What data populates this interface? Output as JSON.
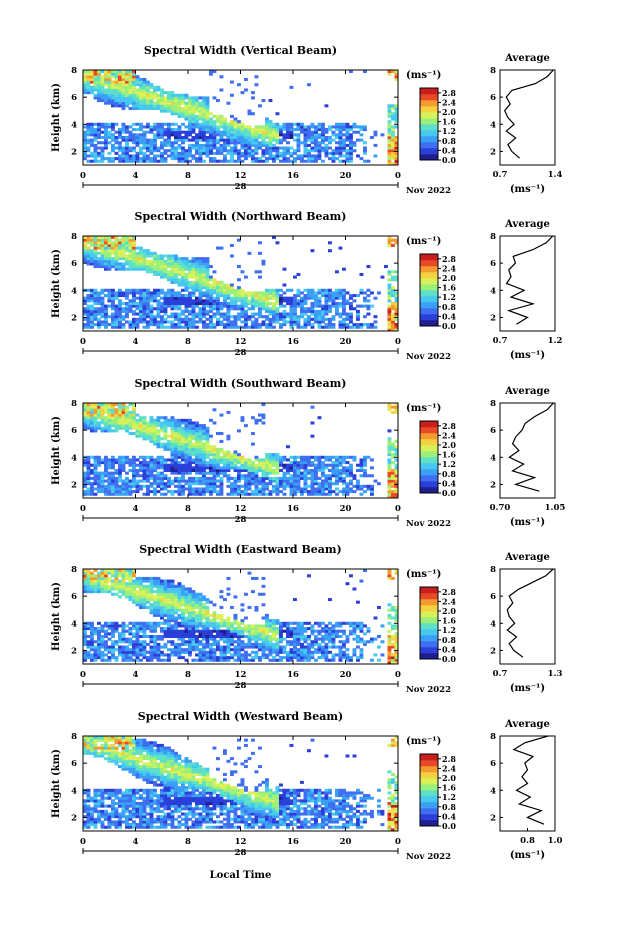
{
  "page": {
    "xlabel": "Local Time",
    "date_label": "Nov 2022",
    "day_label": "28",
    "ylabel": "Height (km)",
    "unit_label": "(ms⁻¹)",
    "average_title": "Average"
  },
  "colors": {
    "scale": [
      "#1f1f8f",
      "#2b3fd9",
      "#3f6ff0",
      "#3aa0f5",
      "#46c8f0",
      "#5ee0c8",
      "#9cf07a",
      "#d8f05a",
      "#f5d040",
      "#f59a30",
      "#e84a28",
      "#c81e1e"
    ]
  },
  "chart_data": [
    {
      "type": "heatmap",
      "title": "Spectral Width (Vertical Beam)",
      "ylabel": "Height (km)",
      "x_ticks": [
        "0",
        "4",
        "8",
        "12",
        "16",
        "20",
        "0"
      ],
      "xlim": [
        0,
        24
      ],
      "y_ticks": [
        "2",
        "4",
        "6",
        "8"
      ],
      "ylim": [
        1,
        8
      ],
      "colorbar_ticks": [
        "0.0",
        "0.4",
        "0.8",
        "1.2",
        "1.6",
        "2.0",
        "2.4",
        "2.8"
      ],
      "clim": [
        0,
        3.0
      ],
      "average": {
        "xlim": [
          0.7,
          1.4
        ],
        "x_ticks": [
          "0.7",
          "1.4"
        ],
        "height": [
          1.5,
          2,
          2.5,
          3,
          3.5,
          4,
          4.5,
          5,
          5.5,
          6,
          6.5,
          7,
          7.5,
          8
        ],
        "value": [
          0.95,
          0.85,
          0.8,
          0.9,
          0.78,
          0.88,
          0.8,
          0.76,
          0.83,
          0.78,
          0.85,
          1.15,
          1.3,
          1.38
        ]
      }
    },
    {
      "type": "heatmap",
      "title": "Spectral Width (Northward Beam)",
      "ylabel": "Height (km)",
      "x_ticks": [
        "0",
        "4",
        "8",
        "12",
        "16",
        "20",
        "0"
      ],
      "xlim": [
        0,
        24
      ],
      "y_ticks": [
        "2",
        "4",
        "6",
        "8"
      ],
      "ylim": [
        1,
        8
      ],
      "colorbar_ticks": [
        "0.0",
        "0.4",
        "0.8",
        "1.2",
        "1.6",
        "2.0",
        "2.4",
        "2.8"
      ],
      "clim": [
        0,
        3.0
      ],
      "average": {
        "xlim": [
          0.7,
          1.2
        ],
        "x_ticks": [
          "0.7",
          "1.2"
        ],
        "height": [
          1.5,
          2,
          2.5,
          3,
          3.5,
          4,
          4.5,
          5,
          5.5,
          6,
          6.5,
          7,
          7.5,
          8
        ],
        "value": [
          0.85,
          0.95,
          0.78,
          1.0,
          0.8,
          0.92,
          0.76,
          0.8,
          0.78,
          0.84,
          0.82,
          1.0,
          1.12,
          1.18
        ]
      }
    },
    {
      "type": "heatmap",
      "title": "Spectral Width (Southward Beam)",
      "ylabel": "Height (km)",
      "x_ticks": [
        "0",
        "4",
        "8",
        "12",
        "16",
        "20",
        "0"
      ],
      "xlim": [
        0,
        24
      ],
      "y_ticks": [
        "2",
        "4",
        "6",
        "8"
      ],
      "ylim": [
        1,
        8
      ],
      "colorbar_ticks": [
        "0.0",
        "0.4",
        "0.8",
        "1.2",
        "1.6",
        "2.0",
        "2.4",
        "2.8"
      ],
      "clim": [
        0,
        3.0
      ],
      "average": {
        "xlim": [
          0.7,
          1.05
        ],
        "x_ticks": [
          "0.70",
          "1.05"
        ],
        "height": [
          1.5,
          2,
          2.5,
          3,
          3.5,
          4,
          4.5,
          5,
          5.5,
          6,
          6.5,
          7,
          7.5,
          8
        ],
        "value": [
          0.95,
          0.8,
          0.92,
          0.78,
          0.85,
          0.76,
          0.82,
          0.78,
          0.8,
          0.84,
          0.86,
          0.92,
          1.0,
          1.04
        ]
      }
    },
    {
      "type": "heatmap",
      "title": "Spectral Width (Eastward Beam)",
      "ylabel": "Height (km)",
      "x_ticks": [
        "0",
        "4",
        "8",
        "12",
        "16",
        "20",
        "0"
      ],
      "xlim": [
        0,
        24
      ],
      "y_ticks": [
        "2",
        "4",
        "6",
        "8"
      ],
      "ylim": [
        1,
        8
      ],
      "colorbar_ticks": [
        "0.0",
        "0.4",
        "0.8",
        "1.2",
        "1.6",
        "2.0",
        "2.4",
        "2.8"
      ],
      "clim": [
        0,
        3.0
      ],
      "average": {
        "xlim": [
          0.7,
          1.3
        ],
        "x_ticks": [
          "0.7",
          "1.3"
        ],
        "height": [
          1.5,
          2,
          2.5,
          3,
          3.5,
          4,
          4.5,
          5,
          5.5,
          6,
          6.5,
          7,
          7.5,
          8
        ],
        "value": [
          0.95,
          0.85,
          0.8,
          0.88,
          0.78,
          0.86,
          0.8,
          0.78,
          0.84,
          0.8,
          0.9,
          1.05,
          1.2,
          1.28
        ]
      }
    },
    {
      "type": "heatmap",
      "title": "Spectral Width (Westward Beam)",
      "ylabel": "Height (km)",
      "x_ticks": [
        "0",
        "4",
        "8",
        "12",
        "16",
        "20",
        "0"
      ],
      "xlim": [
        0,
        24
      ],
      "y_ticks": [
        "2",
        "4",
        "6",
        "8"
      ],
      "ylim": [
        1,
        8
      ],
      "colorbar_ticks": [
        "0.0",
        "0.4",
        "0.8",
        "1.2",
        "1.6",
        "2.0",
        "2.4",
        "2.8"
      ],
      "clim": [
        0,
        3.0
      ],
      "average": {
        "xlim": [
          0.6,
          1.0
        ],
        "x_ticks": [
          "0.8",
          "1.0"
        ],
        "height": [
          1.5,
          2,
          2.5,
          3,
          3.5,
          4,
          4.5,
          5,
          5.5,
          6,
          6.5,
          7,
          7.5,
          8
        ],
        "value": [
          0.92,
          0.8,
          0.9,
          0.74,
          0.82,
          0.72,
          0.8,
          0.76,
          0.8,
          0.78,
          0.84,
          0.7,
          0.78,
          0.95
        ]
      }
    }
  ]
}
